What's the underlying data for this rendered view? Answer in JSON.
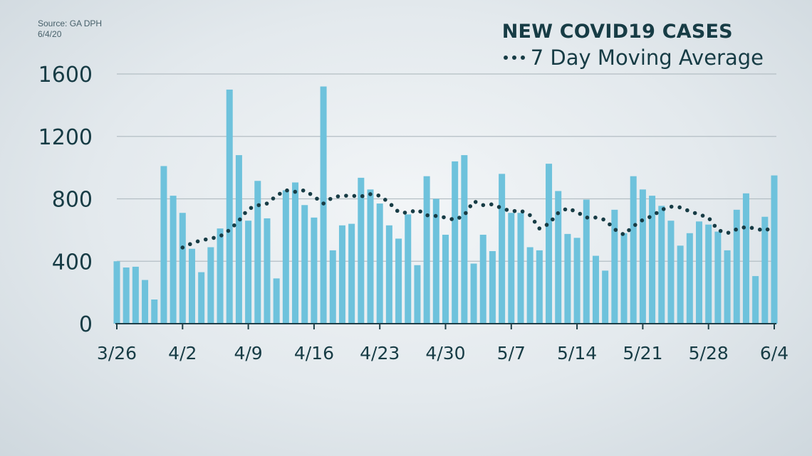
{
  "source": {
    "line1": "Source: GA DPH",
    "line2": "6/4/20"
  },
  "colors": {
    "bar": "#6ec2dc",
    "avg": "#173c45",
    "text": "#173c45",
    "grid": "#b4bec4"
  },
  "chart_data": {
    "type": "bar",
    "title": "NEW COVID19 CASES",
    "legend": "7 Day Moving Average",
    "legend_position": "top-right",
    "grid": true,
    "ylim": [
      0,
      1600
    ],
    "yticks": [
      0,
      400,
      800,
      1200,
      1600
    ],
    "xtick_labels": [
      "3/26",
      "4/2",
      "4/9",
      "4/16",
      "4/23",
      "4/30",
      "5/7",
      "5/14",
      "5/21",
      "5/28",
      "6/4"
    ],
    "categories": [
      "3/26",
      "3/27",
      "3/28",
      "3/29",
      "3/30",
      "3/31",
      "4/1",
      "4/2",
      "4/3",
      "4/4",
      "4/5",
      "4/6",
      "4/7",
      "4/8",
      "4/9",
      "4/10",
      "4/11",
      "4/12",
      "4/13",
      "4/14",
      "4/15",
      "4/16",
      "4/17",
      "4/18",
      "4/19",
      "4/20",
      "4/21",
      "4/22",
      "4/23",
      "4/24",
      "4/25",
      "4/26",
      "4/27",
      "4/28",
      "4/29",
      "4/30",
      "5/1",
      "5/2",
      "5/3",
      "5/4",
      "5/5",
      "5/6",
      "5/7",
      "5/8",
      "5/9",
      "5/10",
      "5/11",
      "5/12",
      "5/13",
      "5/14",
      "5/15",
      "5/16",
      "5/17",
      "5/18",
      "5/19",
      "5/20",
      "5/21",
      "5/22",
      "5/23",
      "5/24",
      "5/25",
      "5/26",
      "5/27",
      "5/28",
      "5/29",
      "5/30",
      "5/31",
      "6/1",
      "6/2",
      "6/3",
      "6/4"
    ],
    "series": [
      {
        "name": "NEW COVID19 CASES",
        "type": "bar",
        "values": [
          400,
          360,
          365,
          280,
          155,
          1010,
          820,
          710,
          480,
          330,
          490,
          610,
          1500,
          1080,
          660,
          915,
          675,
          290,
          855,
          905,
          760,
          680,
          1520,
          470,
          630,
          640,
          935,
          860,
          770,
          630,
          545,
          700,
          375,
          945,
          800,
          570,
          1040,
          1080,
          385,
          570,
          465,
          960,
          710,
          710,
          490,
          470,
          1025,
          850,
          575,
          550,
          795,
          435,
          340,
          730,
          580,
          945,
          860,
          820,
          755,
          660,
          500,
          580,
          655,
          635,
          590,
          470,
          730,
          835,
          305,
          685,
          950
        ]
      },
      {
        "name": "7 Day Moving Average",
        "type": "line",
        "values": [
          null,
          null,
          null,
          null,
          null,
          null,
          null,
          488,
          515,
          535,
          545,
          560,
          600,
          660,
          735,
          758,
          770,
          820,
          855,
          845,
          855,
          815,
          770,
          810,
          820,
          820,
          815,
          830,
          820,
          775,
          715,
          710,
          730,
          695,
          690,
          680,
          665,
          695,
          785,
          760,
          765,
          740,
          720,
          725,
          695,
          610,
          640,
          710,
          740,
          715,
          680,
          680,
          665,
          605,
          570,
          625,
          665,
          690,
          730,
          750,
          745,
          720,
          700,
          680,
          600,
          580,
          605,
          620,
          610,
          595,
          625
        ]
      }
    ]
  }
}
